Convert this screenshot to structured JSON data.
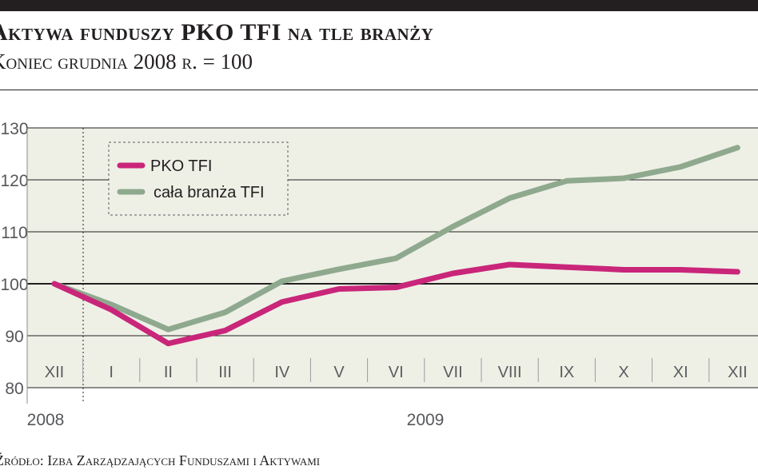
{
  "header": {
    "title": "Aktywa funduszy PKO TFI na tle branży",
    "subtitle": "Koniec grudnia 2008 r. = 100"
  },
  "footer": {
    "source": "Źródło: Izba Zarządzających Funduszami i Aktywami"
  },
  "colors": {
    "pko": "#c9267a",
    "industry": "#8fa98e",
    "plot_bg": "#eef0e6",
    "grid": "#231f20"
  },
  "chart_data": {
    "type": "line",
    "title": "Aktywa funduszy PKO TFI na tle branży",
    "subtitle": "Koniec grudnia 2008 r. = 100",
    "categories": [
      "XII",
      "I",
      "II",
      "III",
      "IV",
      "V",
      "VI",
      "VII",
      "VIII",
      "IX",
      "X",
      "XI",
      "XII"
    ],
    "years": [
      "2008",
      "2009"
    ],
    "ylim": [
      80,
      130
    ],
    "yticks": [
      80,
      90,
      100,
      110,
      120,
      130
    ],
    "ytick_labels": [
      "80",
      "90",
      "100",
      "110",
      "120",
      "130"
    ],
    "reference_line": 100,
    "series": [
      {
        "name": "PKO TFI",
        "color": "#c9267a",
        "values": [
          100,
          95,
          88.5,
          91,
          96.5,
          99,
          99.3,
          102,
          103.7,
          103.2,
          102.7,
          102.7,
          102.3
        ]
      },
      {
        "name": "cała branża TFI",
        "color": "#8fa98e",
        "values": [
          100,
          96,
          91.2,
          94.5,
          100.5,
          102.8,
          104.9,
          111,
          116.5,
          119.8,
          120.3,
          122.5,
          126.2
        ]
      }
    ],
    "legend": [
      "PKO TFI",
      "cała branża TFI"
    ],
    "legend_position": "top-left"
  }
}
